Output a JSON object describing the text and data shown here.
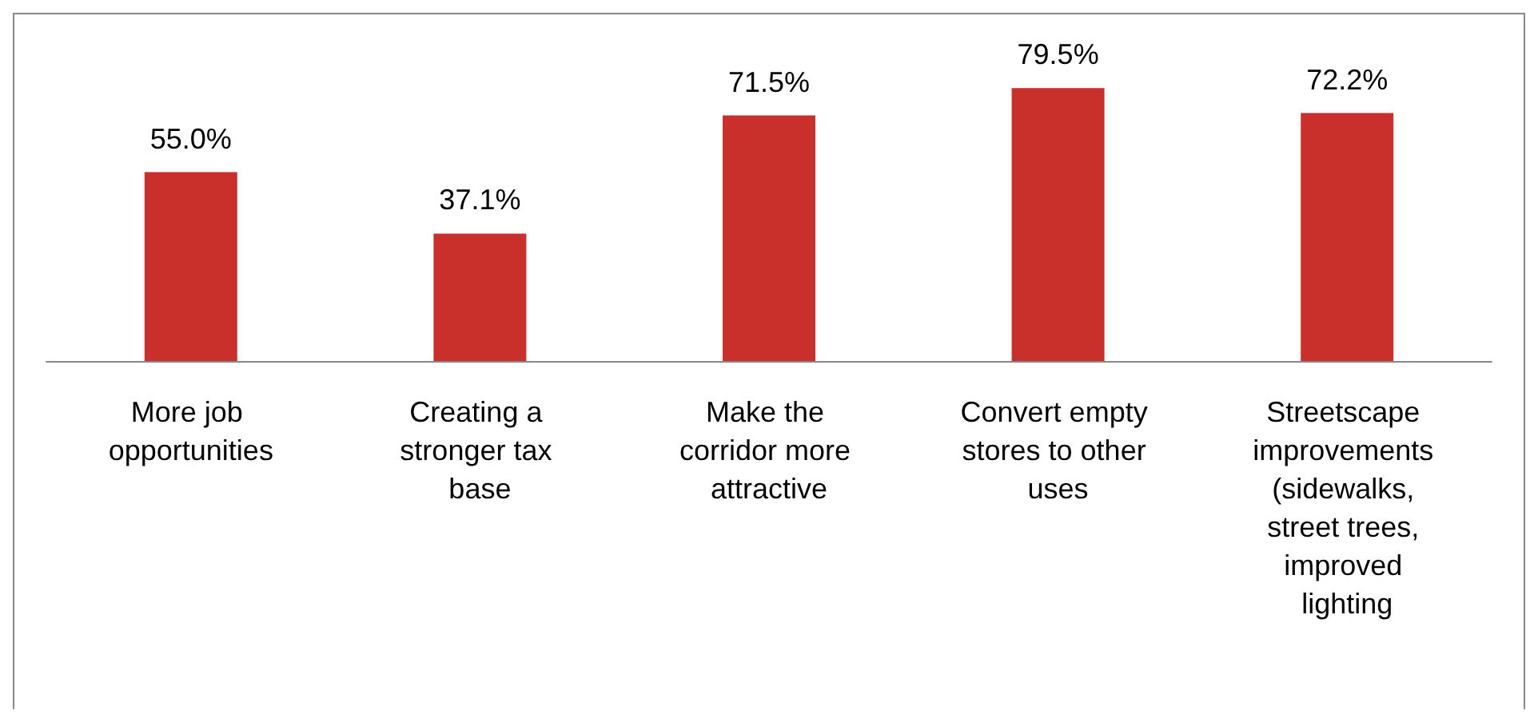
{
  "chart_data": {
    "type": "bar",
    "categories": [
      "More job opportunities",
      "Creating a stronger tax base",
      "Make the corridor more attractive",
      "Convert empty stores to other uses",
      "Streetscape improvements (sidewalks, street trees, improved lighting"
    ],
    "values": [
      55.0,
      37.1,
      71.5,
      79.5,
      72.2
    ],
    "value_labels": [
      "55.0%",
      "37.1%",
      "71.5%",
      "79.5%",
      "72.2%"
    ],
    "color": "#c9302c"
  }
}
